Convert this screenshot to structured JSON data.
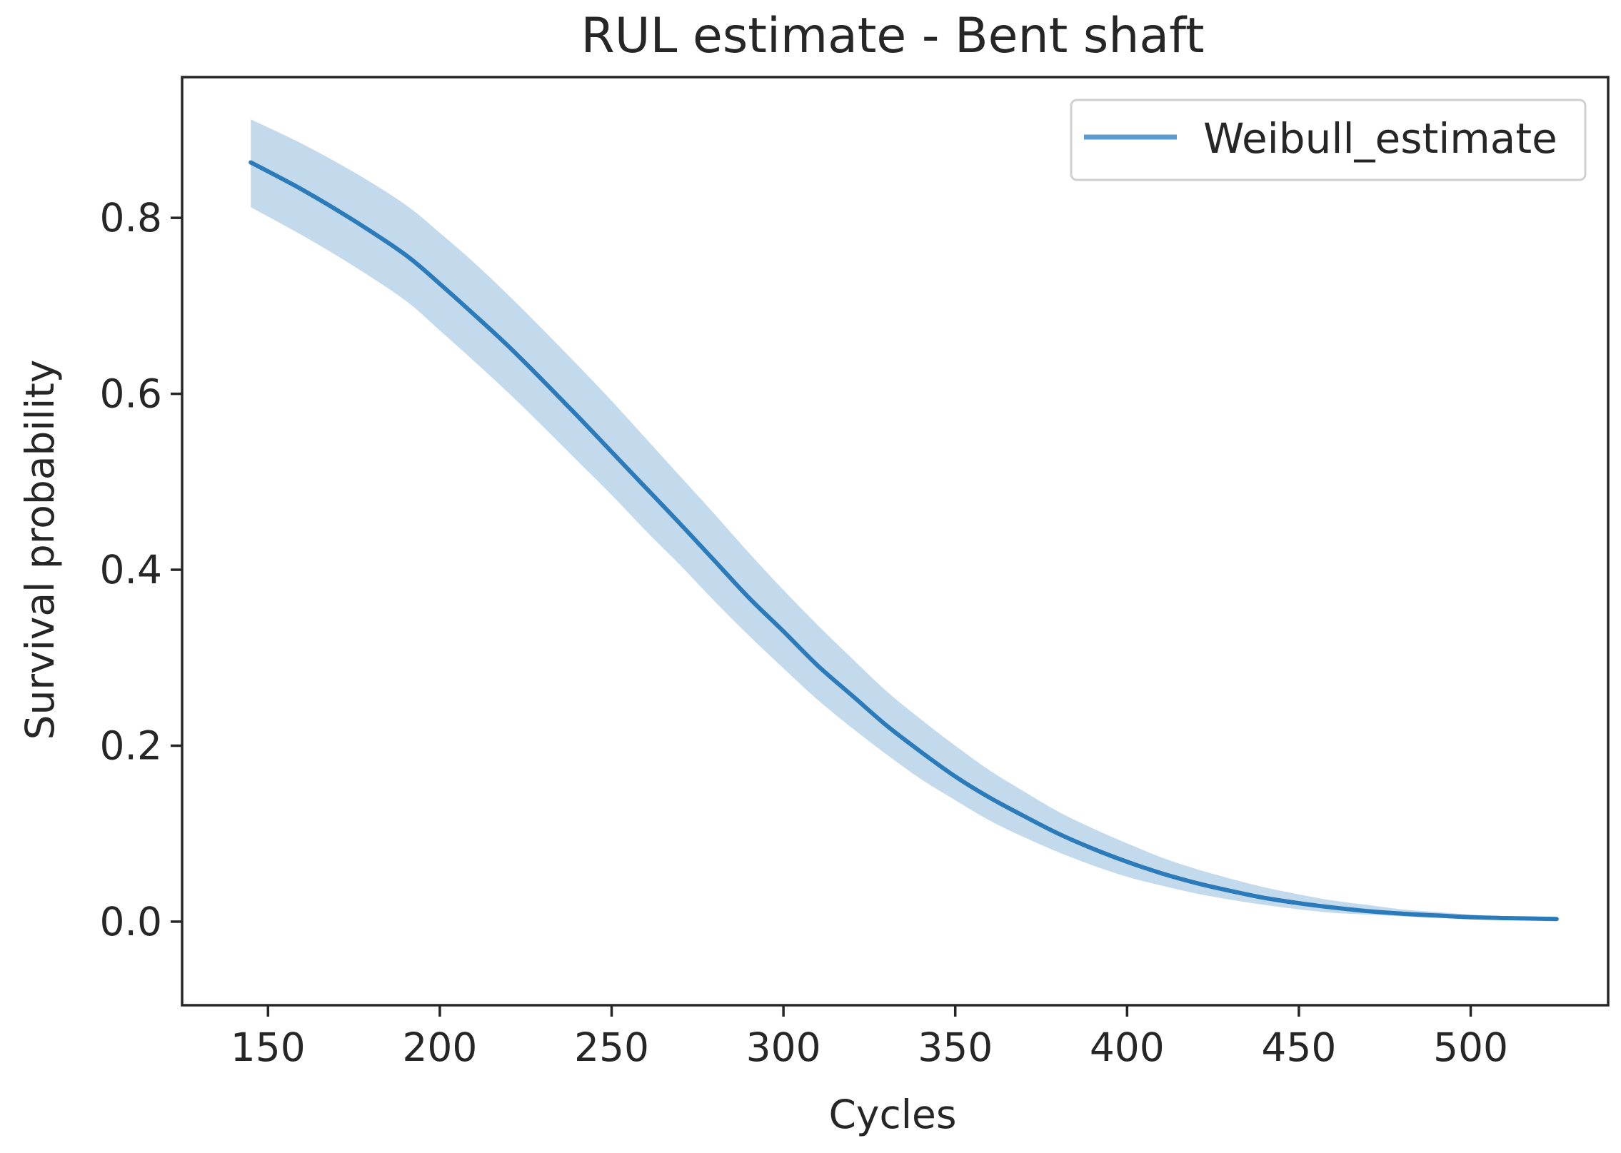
{
  "chart_data": {
    "type": "line",
    "title": "RUL estimate - Bent shaft",
    "xlabel": "Cycles",
    "ylabel": "Survival probability",
    "xlim": [
      125,
      540
    ],
    "ylim": [
      -0.095,
      0.96
    ],
    "xticks": [
      150,
      200,
      250,
      300,
      350,
      400,
      450,
      500
    ],
    "yticks": [
      0.0,
      0.2,
      0.4,
      0.6,
      0.8
    ],
    "xtick_labels": [
      "150",
      "200",
      "250",
      "300",
      "350",
      "400",
      "450",
      "500"
    ],
    "ytick_labels": [
      "0.0",
      "0.2",
      "0.4",
      "0.6",
      "0.8"
    ],
    "grid": false,
    "legend_position": "top-right",
    "colors": {
      "line": "#2b7bba",
      "band": "#b9d3ea",
      "legend_line": "#5b9bd0"
    },
    "series": [
      {
        "name": "Weibull_estimate",
        "x": [
          145,
          160,
          175,
          190,
          200,
          210,
          220,
          230,
          240,
          250,
          260,
          270,
          280,
          290,
          300,
          310,
          320,
          330,
          340,
          350,
          360,
          370,
          380,
          390,
          400,
          410,
          420,
          430,
          440,
          450,
          460,
          470,
          480,
          490,
          500,
          510,
          525
        ],
        "y": [
          0.863,
          0.832,
          0.797,
          0.758,
          0.725,
          0.69,
          0.654,
          0.615,
          0.575,
          0.534,
          0.493,
          0.452,
          0.41,
          0.368,
          0.33,
          0.291,
          0.257,
          0.223,
          0.193,
          0.165,
          0.141,
          0.12,
          0.1,
          0.083,
          0.068,
          0.055,
          0.044,
          0.035,
          0.027,
          0.021,
          0.016,
          0.012,
          0.009,
          0.007,
          0.005,
          0.004,
          0.003
        ],
        "y_lower": [
          0.812,
          0.78,
          0.745,
          0.706,
          0.672,
          0.637,
          0.601,
          0.563,
          0.524,
          0.485,
          0.444,
          0.405,
          0.364,
          0.325,
          0.288,
          0.252,
          0.22,
          0.19,
          0.162,
          0.138,
          0.115,
          0.096,
          0.079,
          0.064,
          0.051,
          0.041,
          0.032,
          0.025,
          0.019,
          0.014,
          0.01,
          0.008,
          0.006,
          0.004,
          0.003,
          0.002,
          0.001
        ],
        "y_upper": [
          0.912,
          0.884,
          0.852,
          0.815,
          0.783,
          0.749,
          0.712,
          0.673,
          0.633,
          0.592,
          0.549,
          0.506,
          0.463,
          0.419,
          0.377,
          0.337,
          0.299,
          0.262,
          0.23,
          0.2,
          0.172,
          0.148,
          0.125,
          0.106,
          0.089,
          0.073,
          0.06,
          0.049,
          0.039,
          0.031,
          0.024,
          0.019,
          0.014,
          0.011,
          0.008,
          0.006,
          0.005
        ]
      }
    ]
  }
}
